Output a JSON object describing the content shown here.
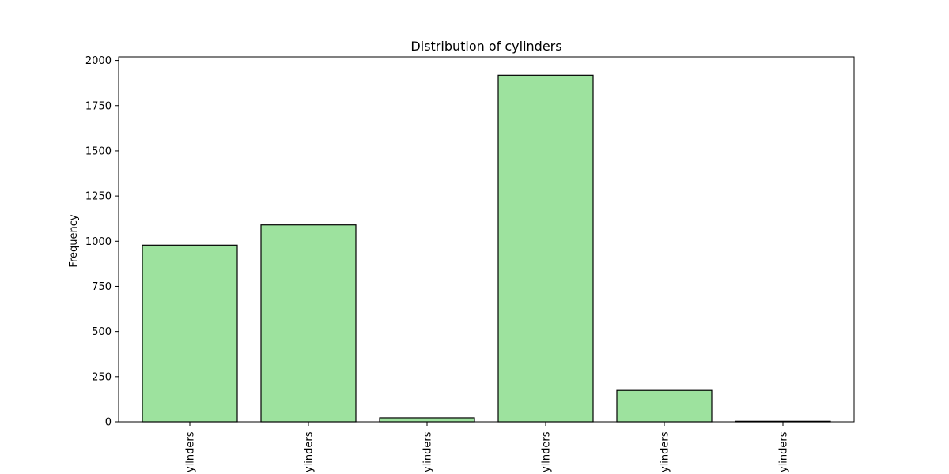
{
  "chart_data": {
    "type": "bar",
    "title": "Distribution of cylinders",
    "xlabel": "",
    "ylabel": "Frequency",
    "categories": [
      "ylinders",
      "ylinders",
      "ylinders",
      "ylinders",
      "ylinders",
      "ylinders"
    ],
    "values": [
      978,
      1090,
      22,
      1918,
      174,
      3
    ],
    "ylim": [
      0,
      2020
    ],
    "yticks": [
      0,
      250,
      500,
      750,
      1000,
      1250,
      1500,
      1750,
      2000
    ],
    "grid": false,
    "colors": {
      "bar_fill": "#9de29e",
      "bar_edge": "#000000",
      "axes": "#000000"
    }
  }
}
